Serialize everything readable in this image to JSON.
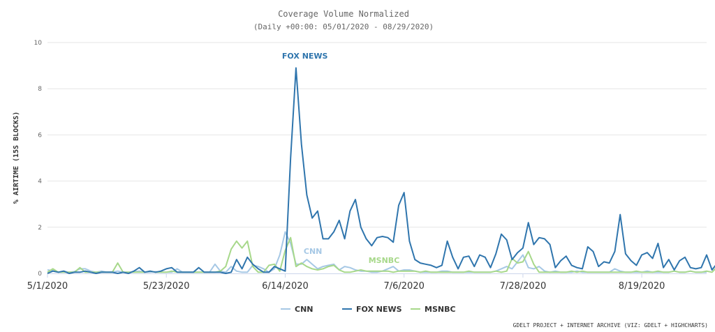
{
  "chart_data": {
    "type": "line",
    "title": "Coverage Volume Normalized",
    "subtitle": "(Daily +00:00: 05/01/2020 - 08/29/2020)",
    "xlabel": "",
    "ylabel": "% AIRTIME (15S BLOCKS)",
    "ylim": [
      0,
      10
    ],
    "yticks": [
      "0",
      "2",
      "4",
      "6",
      "8",
      "10"
    ],
    "xticks": [
      {
        "label": "5/1/2020",
        "index": 0
      },
      {
        "label": "5/23/2020",
        "index": 22
      },
      {
        "label": "6/14/2020",
        "index": 44
      },
      {
        "label": "7/6/2020",
        "index": 66
      },
      {
        "label": "7/28/2020",
        "index": 88
      },
      {
        "label": "8/19/2020",
        "index": 110
      }
    ],
    "grid": true,
    "legend": "bottom-center",
    "credits": "GDELT PROJECT + INTERNET ARCHIVE (VIZ: GDELT + HIGHCHARTS)",
    "annotations": [
      {
        "text": "FOX NEWS",
        "series": "FOX NEWS"
      },
      {
        "text": "CNN",
        "series": "CNN"
      },
      {
        "text": "MSNBC",
        "series": "MSNBC"
      }
    ],
    "series": [
      {
        "name": "CNN",
        "color": "#a6c8e5",
        "values": [
          0.15,
          0.12,
          0.05,
          0.1,
          0.05,
          0.08,
          0.2,
          0.2,
          0.1,
          0.05,
          0.1,
          0.05,
          0.05,
          0.1,
          0.05,
          0.05,
          0.08,
          0.1,
          0.05,
          0.05,
          0.08,
          0.05,
          0.05,
          0.05,
          0.2,
          0.05,
          0.05,
          0.05,
          0.05,
          0.05,
          0.05,
          0.4,
          0.1,
          0.05,
          0.3,
          0.1,
          0.05,
          0.05,
          0.35,
          0.3,
          0.2,
          0.05,
          0.2,
          0.8,
          1.8,
          1.3,
          0.4,
          0.4,
          0.6,
          0.4,
          0.2,
          0.3,
          0.35,
          0.4,
          0.15,
          0.3,
          0.25,
          0.15,
          0.1,
          0.1,
          0.05,
          0.05,
          0.1,
          0.2,
          0.3,
          0.1,
          0.15,
          0.15,
          0.1,
          0.05,
          0.05,
          0.05,
          0.05,
          0.1,
          0.1,
          0.05,
          0.05,
          0.05,
          0.05,
          0.05,
          0.05,
          0.05,
          0.05,
          0.1,
          0.2,
          0.3,
          0.2,
          0.5,
          0.8,
          0.25,
          0.2,
          0.3,
          0.1,
          0.05,
          0.1,
          0.05,
          0.05,
          0.05,
          0.1,
          0.05,
          0.05,
          0.05,
          0.05,
          0.05,
          0.05,
          0.2,
          0.1,
          0.05,
          0.05,
          0.05,
          0.05,
          0.1,
          0.05,
          0.05,
          0.05,
          0.05,
          0.1,
          0.05,
          0.05,
          0.1,
          0.05,
          0.05,
          0.05
        ]
      },
      {
        "name": "FOX NEWS",
        "color": "#2f75ad",
        "values": [
          0.0,
          0.1,
          0.05,
          0.1,
          0.0,
          0.05,
          0.05,
          0.1,
          0.05,
          0.0,
          0.05,
          0.05,
          0.05,
          0.0,
          0.05,
          0.0,
          0.1,
          0.25,
          0.05,
          0.1,
          0.05,
          0.1,
          0.2,
          0.25,
          0.05,
          0.05,
          0.05,
          0.05,
          0.25,
          0.05,
          0.05,
          0.05,
          0.05,
          0.0,
          0.05,
          0.6,
          0.2,
          0.7,
          0.4,
          0.2,
          0.05,
          0.05,
          0.3,
          0.2,
          0.1,
          5.0,
          8.9,
          5.6,
          3.4,
          2.4,
          2.7,
          1.5,
          1.5,
          1.8,
          2.3,
          1.5,
          2.7,
          3.2,
          2.0,
          1.5,
          1.2,
          1.55,
          1.6,
          1.55,
          1.35,
          2.95,
          3.5,
          1.4,
          0.6,
          0.45,
          0.4,
          0.35,
          0.25,
          0.35,
          1.4,
          0.7,
          0.2,
          0.7,
          0.75,
          0.3,
          0.8,
          0.7,
          0.25,
          0.85,
          1.7,
          1.45,
          0.6,
          0.9,
          1.1,
          2.2,
          1.25,
          1.55,
          1.5,
          1.25,
          0.25,
          0.55,
          0.75,
          0.35,
          0.25,
          0.2,
          1.15,
          0.95,
          0.3,
          0.5,
          0.45,
          0.95,
          2.55,
          0.85,
          0.55,
          0.35,
          0.8,
          0.9,
          0.65,
          1.3,
          0.25,
          0.6,
          0.15,
          0.55,
          0.7,
          0.25,
          0.2,
          0.25,
          0.8,
          0.15,
          0.45
        ]
      },
      {
        "name": "MSNBC",
        "color": "#a7d88a",
        "values": [
          0.05,
          0.2,
          0.05,
          0.05,
          0.05,
          0.05,
          0.25,
          0.05,
          0.05,
          0.05,
          0.05,
          0.05,
          0.05,
          0.45,
          0.05,
          0.05,
          0.05,
          0.05,
          0.05,
          0.1,
          0.05,
          0.05,
          0.05,
          0.1,
          0.05,
          0.05,
          0.05,
          0.05,
          0.05,
          0.05,
          0.05,
          0.05,
          0.1,
          0.3,
          1.05,
          1.4,
          1.1,
          1.4,
          0.3,
          0.05,
          0.05,
          0.35,
          0.4,
          0.1,
          1.0,
          1.55,
          0.3,
          0.45,
          0.3,
          0.2,
          0.15,
          0.2,
          0.3,
          0.35,
          0.15,
          0.05,
          0.05,
          0.1,
          0.15,
          0.1,
          0.1,
          0.1,
          0.1,
          0.1,
          0.05,
          0.1,
          0.1,
          0.1,
          0.1,
          0.05,
          0.1,
          0.05,
          0.05,
          0.05,
          0.05,
          0.05,
          0.05,
          0.05,
          0.1,
          0.05,
          0.05,
          0.05,
          0.05,
          0.1,
          0.05,
          0.1,
          0.65,
          0.45,
          0.5,
          0.95,
          0.4,
          0.05,
          0.05,
          0.05,
          0.05,
          0.05,
          0.05,
          0.1,
          0.05,
          0.1,
          0.05,
          0.05,
          0.05,
          0.05,
          0.05,
          0.05,
          0.05,
          0.05,
          0.05,
          0.1,
          0.05,
          0.05,
          0.05,
          0.1,
          0.05,
          0.05,
          0.1,
          0.05,
          0.05,
          0.1,
          0.05,
          0.05,
          0.1,
          0.05,
          0.3,
          0.05
        ]
      }
    ]
  }
}
